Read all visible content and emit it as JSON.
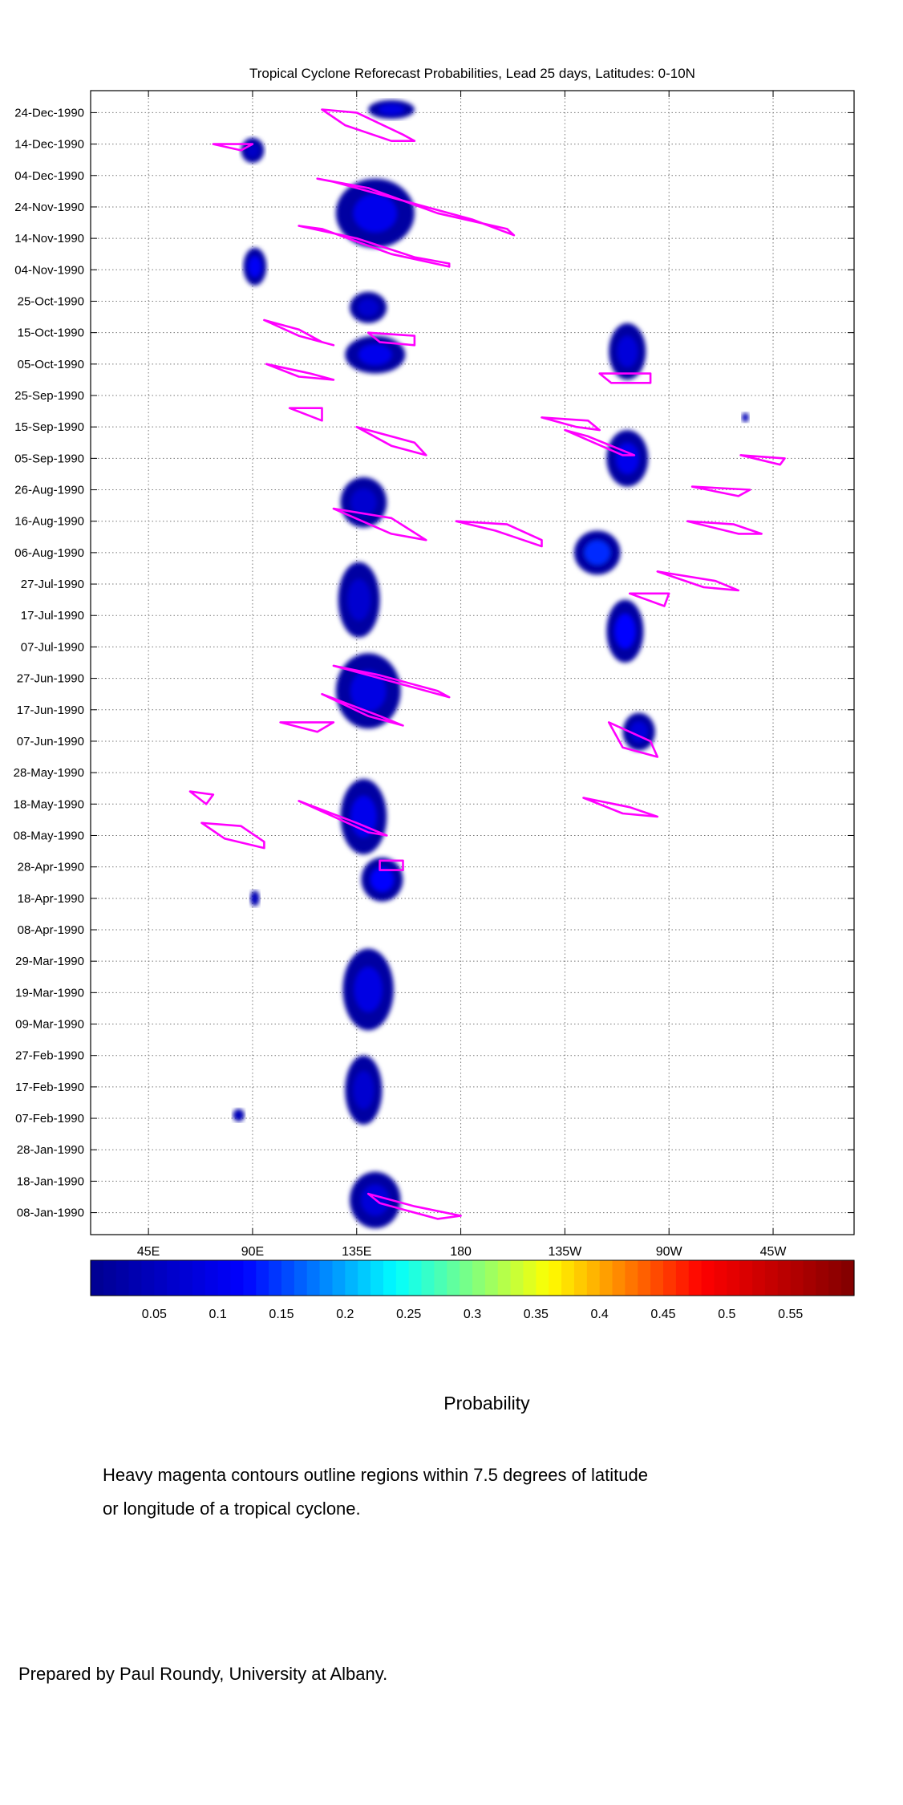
{
  "chart_data": {
    "type": "heatmap",
    "title": "Tropical Cyclone Reforecast Probabilities, Lead 25 days, Latitudes: 0-10N",
    "x_tick_labels": [
      "45E",
      "90E",
      "135E",
      "180",
      "135W",
      "90W",
      "45W"
    ],
    "x_tick_lon": [
      45,
      90,
      135,
      180,
      225,
      270,
      315
    ],
    "xlim": [
      20,
      350
    ],
    "y_tick_labels": [
      "24-Dec-1990",
      "14-Dec-1990",
      "04-Dec-1990",
      "24-Nov-1990",
      "14-Nov-1990",
      "04-Nov-1990",
      "25-Oct-1990",
      "15-Oct-1990",
      "05-Oct-1990",
      "25-Sep-1990",
      "15-Sep-1990",
      "05-Sep-1990",
      "26-Aug-1990",
      "16-Aug-1990",
      "06-Aug-1990",
      "27-Jul-1990",
      "17-Jul-1990",
      "07-Jul-1990",
      "27-Jun-1990",
      "17-Jun-1990",
      "07-Jun-1990",
      "28-May-1990",
      "18-May-1990",
      "08-May-1990",
      "28-Apr-1990",
      "18-Apr-1990",
      "08-Apr-1990",
      "29-Mar-1990",
      "19-Mar-1990",
      "09-Mar-1990",
      "27-Feb-1990",
      "17-Feb-1990",
      "07-Feb-1990",
      "28-Jan-1990",
      "18-Jan-1990",
      "08-Jan-1990"
    ],
    "ylim": [
      "1990-01-01",
      "1990-12-31"
    ],
    "colorbar": {
      "label": "Probability",
      "range": [
        0,
        0.6
      ],
      "tick_values": [
        0.05,
        0.1,
        0.15,
        0.2,
        0.25,
        0.3,
        0.35,
        0.4,
        0.45,
        0.5,
        0.55
      ],
      "tick_labels": [
        "0.05",
        "0.1",
        "0.15",
        "0.2",
        "0.25",
        "0.3",
        "0.35",
        "0.4",
        "0.45",
        "0.5",
        "0.55"
      ],
      "colors": [
        "#00008f",
        "#0000ff",
        "#00ffff",
        "#ffff00",
        "#ff0000",
        "#800000"
      ]
    },
    "contour_color": "#ff00ff",
    "probability_blobs": [
      {
        "lon": 150,
        "date": "1990-12-25",
        "lon_span": 20,
        "day_span": 6,
        "p": 0.09
      },
      {
        "lon": 90,
        "date": "1990-12-12",
        "lon_span": 10,
        "day_span": 8,
        "p": 0.06
      },
      {
        "lon": 143,
        "date": "1990-11-22",
        "lon_span": 34,
        "day_span": 22,
        "p": 0.1
      },
      {
        "lon": 91,
        "date": "1990-11-05",
        "lon_span": 10,
        "day_span": 12,
        "p": 0.11
      },
      {
        "lon": 140,
        "date": "1990-10-23",
        "lon_span": 16,
        "day_span": 10,
        "p": 0.07
      },
      {
        "lon": 143,
        "date": "1990-10-08",
        "lon_span": 26,
        "day_span": 12,
        "p": 0.1
      },
      {
        "lon": 252,
        "date": "1990-10-09",
        "lon_span": 16,
        "day_span": 18,
        "p": 0.08
      },
      {
        "lon": 303,
        "date": "1990-09-18",
        "lon_span": 3,
        "day_span": 3,
        "p": 0.07
      },
      {
        "lon": 252,
        "date": "1990-09-05",
        "lon_span": 18,
        "day_span": 18,
        "p": 0.1
      },
      {
        "lon": 138,
        "date": "1990-08-22",
        "lon_span": 20,
        "day_span": 16,
        "p": 0.07
      },
      {
        "lon": 239,
        "date": "1990-08-06",
        "lon_span": 20,
        "day_span": 14,
        "p": 0.14
      },
      {
        "lon": 136,
        "date": "1990-07-22",
        "lon_span": 18,
        "day_span": 24,
        "p": 0.07
      },
      {
        "lon": 251,
        "date": "1990-07-12",
        "lon_span": 16,
        "day_span": 20,
        "p": 0.12
      },
      {
        "lon": 140,
        "date": "1990-06-23",
        "lon_span": 28,
        "day_span": 24,
        "p": 0.09
      },
      {
        "lon": 257,
        "date": "1990-06-10",
        "lon_span": 14,
        "day_span": 12,
        "p": 0.08
      },
      {
        "lon": 138,
        "date": "1990-05-14",
        "lon_span": 20,
        "day_span": 24,
        "p": 0.1
      },
      {
        "lon": 146,
        "date": "1990-04-24",
        "lon_span": 18,
        "day_span": 14,
        "p": 0.12
      },
      {
        "lon": 91,
        "date": "1990-04-18",
        "lon_span": 4,
        "day_span": 5,
        "p": 0.06
      },
      {
        "lon": 140,
        "date": "1990-03-20",
        "lon_span": 22,
        "day_span": 26,
        "p": 0.09
      },
      {
        "lon": 138,
        "date": "1990-02-16",
        "lon_span": 16,
        "day_span": 22,
        "p": 0.07
      },
      {
        "lon": 84,
        "date": "1990-02-08",
        "lon_span": 5,
        "day_span": 4,
        "p": 0.06
      },
      {
        "lon": 143,
        "date": "1990-01-12",
        "lon_span": 22,
        "day_span": 18,
        "p": 0.08
      }
    ],
    "cyclone_contours": [
      {
        "lon": [
          120,
          135,
          155,
          160,
          150,
          130,
          120
        ],
        "date": [
          "1990-12-25",
          "1990-12-24",
          "1990-12-17",
          "1990-12-15",
          "1990-12-15",
          "1990-12-20",
          "1990-12-25"
        ]
      },
      {
        "lon": [
          73,
          90,
          85,
          73
        ],
        "date": [
          "1990-12-14",
          "1990-12-14",
          "1990-12-12",
          "1990-12-14"
        ]
      },
      {
        "lon": [
          118,
          140,
          170,
          200,
          203,
          185,
          160,
          125,
          118
        ],
        "date": [
          "1990-12-03",
          "1990-11-30",
          "1990-11-22",
          "1990-11-17",
          "1990-11-15",
          "1990-11-20",
          "1990-11-25",
          "1990-12-02",
          "1990-12-03"
        ]
      },
      {
        "lon": [
          110,
          135,
          160,
          175,
          175,
          150,
          120,
          110
        ],
        "date": [
          "1990-11-18",
          "1990-11-14",
          "1990-11-08",
          "1990-11-06",
          "1990-11-05",
          "1990-11-09",
          "1990-11-17",
          "1990-11-18"
        ]
      },
      {
        "lon": [
          95,
          110,
          120,
          125,
          110,
          95
        ],
        "date": [
          "1990-10-19",
          "1990-10-16",
          "1990-10-12",
          "1990-10-11",
          "1990-10-14",
          "1990-10-19"
        ]
      },
      {
        "lon": [
          140,
          160,
          160,
          145,
          140
        ],
        "date": [
          "1990-10-15",
          "1990-10-14",
          "1990-10-11",
          "1990-10-12",
          "1990-10-15"
        ]
      },
      {
        "lon": [
          96,
          115,
          125,
          110,
          96
        ],
        "date": [
          "1990-10-05",
          "1990-10-02",
          "1990-09-30",
          "1990-10-01",
          "1990-10-05"
        ]
      },
      {
        "lon": [
          106,
          120,
          120,
          106
        ],
        "date": [
          "1990-09-21",
          "1990-09-21",
          "1990-09-17",
          "1990-09-21"
        ]
      },
      {
        "lon": [
          135,
          160,
          165,
          150,
          135
        ],
        "date": [
          "1990-09-15",
          "1990-09-10",
          "1990-09-06",
          "1990-09-09",
          "1990-09-15"
        ]
      },
      {
        "lon": [
          215,
          235,
          240,
          230,
          215
        ],
        "date": [
          "1990-09-18",
          "1990-09-17",
          "1990-09-14",
          "1990-09-15",
          "1990-09-18"
        ]
      },
      {
        "lon": [
          225,
          250,
          255,
          235,
          225
        ],
        "date": [
          "1990-09-14",
          "1990-09-06",
          "1990-09-06",
          "1990-09-12",
          "1990-09-14"
        ]
      },
      {
        "lon": [
          240,
          262,
          262,
          245,
          240
        ],
        "date": [
          "1990-10-02",
          "1990-10-02",
          "1990-09-29",
          "1990-09-29",
          "1990-10-02"
        ]
      },
      {
        "lon": [
          301,
          320,
          318,
          301
        ],
        "date": [
          "1990-09-06",
          "1990-09-05",
          "1990-09-03",
          "1990-09-06"
        ]
      },
      {
        "lon": [
          280,
          305,
          300,
          280
        ],
        "date": [
          "1990-08-27",
          "1990-08-26",
          "1990-08-24",
          "1990-08-27"
        ]
      },
      {
        "lon": [
          178,
          200,
          215,
          215,
          195,
          178
        ],
        "date": [
          "1990-08-16",
          "1990-08-15",
          "1990-08-10",
          "1990-08-08",
          "1990-08-13",
          "1990-08-16"
        ]
      },
      {
        "lon": [
          278,
          298,
          310,
          300,
          278
        ],
        "date": [
          "1990-08-16",
          "1990-08-15",
          "1990-08-12",
          "1990-08-12",
          "1990-08-16"
        ]
      },
      {
        "lon": [
          265,
          290,
          300,
          285,
          265
        ],
        "date": [
          "1990-07-31",
          "1990-07-28",
          "1990-07-25",
          "1990-07-26",
          "1990-07-31"
        ]
      },
      {
        "lon": [
          125,
          150,
          165,
          150,
          125
        ],
        "date": [
          "1990-08-20",
          "1990-08-17",
          "1990-08-10",
          "1990-08-12",
          "1990-08-20"
        ]
      },
      {
        "lon": [
          125,
          145,
          170,
          175,
          160,
          130,
          125
        ],
        "date": [
          "1990-07-01",
          "1990-06-28",
          "1990-06-23",
          "1990-06-21",
          "1990-06-24",
          "1990-06-30",
          "1990-07-01"
        ]
      },
      {
        "lon": [
          120,
          140,
          155,
          145,
          120
        ],
        "date": [
          "1990-06-22",
          "1990-06-15",
          "1990-06-12",
          "1990-06-15",
          "1990-06-22"
        ]
      },
      {
        "lon": [
          102,
          125,
          118,
          102
        ],
        "date": [
          "1990-06-13",
          "1990-06-13",
          "1990-06-10",
          "1990-06-13"
        ]
      },
      {
        "lon": [
          253,
          270,
          268,
          253
        ],
        "date": [
          "1990-07-24",
          "1990-07-24",
          "1990-07-20",
          "1990-07-24"
        ]
      },
      {
        "lon": [
          244,
          262,
          265,
          250,
          244
        ],
        "date": [
          "1990-06-13",
          "1990-06-07",
          "1990-06-02",
          "1990-06-05",
          "1990-06-13"
        ]
      },
      {
        "lon": [
          110,
          135,
          148,
          140,
          110
        ],
        "date": [
          "1990-05-19",
          "1990-05-12",
          "1990-05-08",
          "1990-05-09",
          "1990-05-19"
        ]
      },
      {
        "lon": [
          233,
          253,
          265,
          250,
          233
        ],
        "date": [
          "1990-05-20",
          "1990-05-17",
          "1990-05-14",
          "1990-05-15",
          "1990-05-20"
        ]
      },
      {
        "lon": [
          63,
          73,
          70,
          63
        ],
        "date": [
          "1990-05-22",
          "1990-05-21",
          "1990-05-18",
          "1990-05-22"
        ]
      },
      {
        "lon": [
          68,
          85,
          95,
          95,
          78,
          68
        ],
        "date": [
          "1990-05-12",
          "1990-05-11",
          "1990-05-06",
          "1990-05-04",
          "1990-05-07",
          "1990-05-12"
        ]
      },
      {
        "lon": [
          145,
          155,
          155,
          145,
          145
        ],
        "date": [
          "1990-04-30",
          "1990-04-30",
          "1990-04-27",
          "1990-04-27",
          "1990-04-30"
        ]
      },
      {
        "lon": [
          140,
          160,
          180,
          170,
          145,
          140
        ],
        "date": [
          "1990-01-14",
          "1990-01-10",
          "1990-01-07",
          "1990-01-06",
          "1990-01-11",
          "1990-01-14"
        ]
      }
    ]
  },
  "footnote_lines": [
    "Heavy magenta contours outline regions within 7.5 degrees of latitude",
    "or longitude of a tropical cyclone."
  ],
  "credit": "Prepared by Paul Roundy, University at Albany."
}
